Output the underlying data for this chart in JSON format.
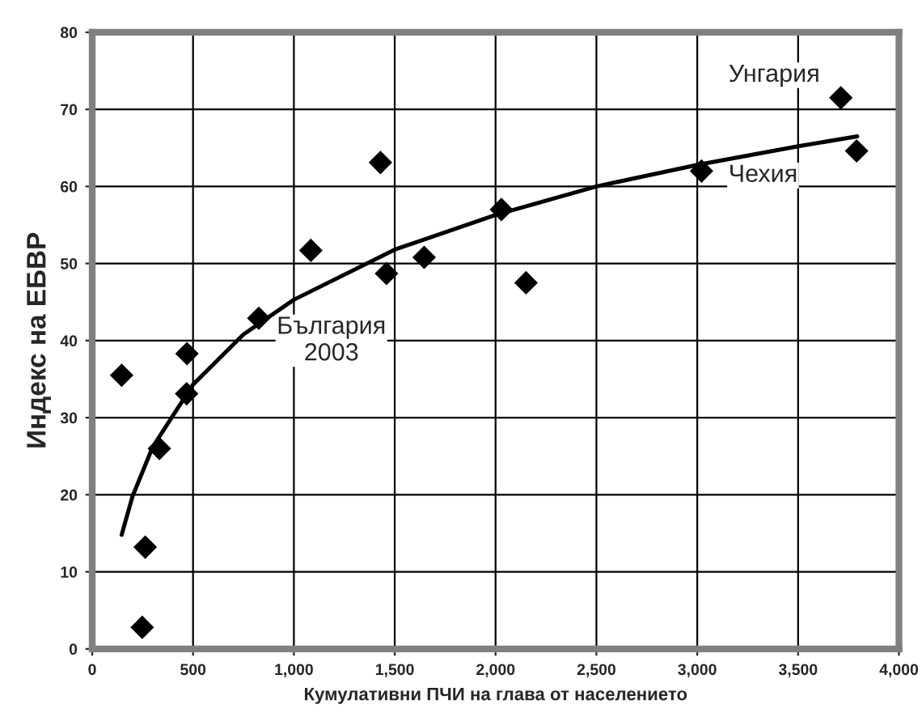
{
  "chart_data": {
    "type": "scatter",
    "xlabel": "Кумулативни ПЧИ на глава от населението",
    "ylabel": "Индекс на ЕБВР",
    "xlim": [
      0,
      4000
    ],
    "xticks": [
      0,
      {
        "value": 500,
        "label": "500"
      },
      {
        "value": 1000,
        "label": "1,000"
      },
      {
        "value": 1500,
        "label": "1,500"
      },
      {
        "value": 2000,
        "label": "2,000"
      },
      {
        "value": 2500,
        "label": "2,500"
      },
      {
        "value": 3000,
        "label": "3,000"
      },
      {
        "value": 3500,
        "label": "3,500"
      },
      {
        "value": 4000,
        "label": "4,000"
      }
    ],
    "ylim": [
      0,
      80
    ],
    "yticks": [
      0,
      10,
      20,
      30,
      40,
      50,
      60,
      70,
      80
    ],
    "grid": true,
    "marker": "diamond",
    "series": [
      {
        "color": "#000000",
        "x": [
          146,
          263,
          248,
          333,
          470,
          468,
          826,
          1084,
          1429,
          1459,
          1646,
          2029,
          2151,
          3021,
          3712,
          3790
        ],
        "values": [
          35.5,
          13.2,
          2.8,
          26,
          38.3,
          33.1,
          42.9,
          51.7,
          63.1,
          48.7,
          50.8,
          57.0,
          47.5,
          62.0,
          71.5,
          64.6
        ]
      },
      {
        "type": "line",
        "color": "#000000",
        "marker": "none",
        "x": [
          146,
          200,
          300,
          500,
          750,
          1000,
          1500,
          2000,
          2500,
          3000,
          3500,
          3793
        ],
        "values": [
          14.8,
          19.8,
          26.2,
          34.3,
          40.8,
          45.3,
          51.8,
          56.3,
          60.0,
          62.8,
          65.2,
          66.5
        ]
      }
    ],
    "annotations": [
      {
        "text": "България\n2003",
        "x": 826,
        "y": 42.9
      },
      {
        "text": "Унгария",
        "x": 3712,
        "y": 71.5
      },
      {
        "text": "Чехия",
        "x": 3021,
        "y": 62.0
      }
    ]
  }
}
